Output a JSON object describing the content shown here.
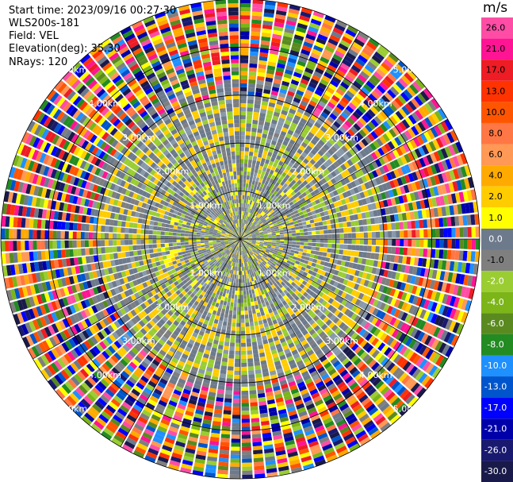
{
  "header": {
    "start_time": "Start time: 2023/09/16 00:27:30",
    "instrument": "WLS200s-181",
    "field": "Field: VEL",
    "elevation": "Elevation(deg): 35.30",
    "nrays": "NRays: 120"
  },
  "colorbar": {
    "unit": "m/s",
    "ticks": [
      "26.0",
      "21.0",
      "17.0",
      "13.0",
      "10.0",
      "8.0",
      "6.0",
      "4.0",
      "2.0",
      "1.0",
      "0.0",
      "-1.0",
      "-2.0",
      "-4.0",
      "-6.0",
      "-8.0",
      "-10.0",
      "-13.0",
      "-17.0",
      "-21.0",
      "-26.0",
      "-30.0"
    ],
    "colors": [
      "#ff4da6",
      "#ff1493",
      "#ee1c25",
      "#ff3300",
      "#ff5500",
      "#ff7744",
      "#ff9955",
      "#ffaa00",
      "#ffcc00",
      "#ffff00",
      "#6c7a8c",
      "#7f7f7f",
      "#9acd32",
      "#7cb518",
      "#5a8a1f",
      "#228b22",
      "#1e90ff",
      "#0055cc",
      "#0000ff",
      "#0000aa",
      "#191970",
      "#1a1a4a"
    ]
  },
  "chart_data": {
    "type": "heatmap",
    "projection": "polar PPI",
    "field": "VEL",
    "units": "m/s",
    "nrays": 120,
    "range_ring_labels": [
      "1.00km",
      "2.00km",
      "3.00km",
      "4.00km",
      "5.00km"
    ],
    "range_rings_km": [
      1,
      2,
      3,
      4,
      5
    ],
    "max_range_km": 5,
    "description_regions": [
      {
        "range_km": [
          0,
          1.7
        ],
        "dominant_values_ms": [
          0.0,
          1.0,
          -2.0
        ]
      },
      {
        "range_km": [
          1.7,
          3.0
        ],
        "dominant_values_ms": [
          0.0,
          2.0,
          -2.0
        ]
      },
      {
        "range_km": [
          3.0,
          5.0
        ],
        "dominant_values_ms": "noise across full scale -30 to 26"
      }
    ]
  }
}
